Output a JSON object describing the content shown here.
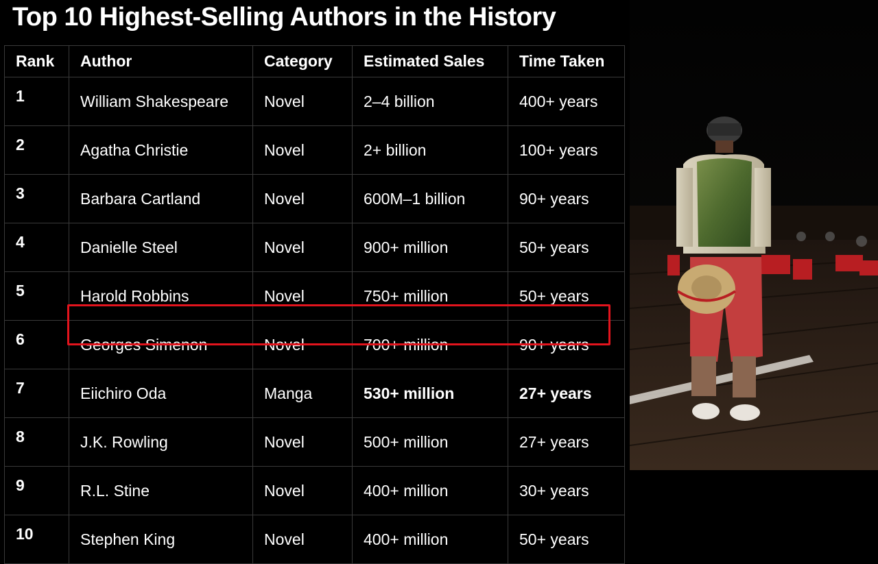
{
  "title": "Top 10 Highest-Selling Authors in the History",
  "table": {
    "headers": [
      "Rank",
      "Author",
      "Category",
      "Estimated Sales",
      "Time Taken"
    ],
    "rows": [
      {
        "rank": "1",
        "author": "William Shakespeare",
        "category": "Novel",
        "sales": "2–4 billion",
        "time": "400+ years"
      },
      {
        "rank": "2",
        "author": "Agatha Christie",
        "category": "Novel",
        "sales": "2+ billion",
        "time": "100+ years"
      },
      {
        "rank": "3",
        "author": "Barbara Cartland",
        "category": "Novel",
        "sales": "600M–1 billion",
        "time": "90+ years"
      },
      {
        "rank": "4",
        "author": "Danielle Steel",
        "category": "Novel",
        "sales": "900+ million",
        "time": "50+ years"
      },
      {
        "rank": "5",
        "author": "Harold Robbins",
        "category": "Novel",
        "sales": "750+ million",
        "time": "50+ years"
      },
      {
        "rank": "6",
        "author": "Georges Simenon",
        "category": "Novel",
        "sales": "700+ million",
        "time": "90+ years"
      },
      {
        "rank": "7",
        "author": "Eiichiro Oda",
        "category": "Manga",
        "sales": "530+ million",
        "time": "27+ years",
        "highlighted": true
      },
      {
        "rank": "8",
        "author": "J.K. Rowling",
        "category": "Novel",
        "sales": "500+ million",
        "time": "27+ years"
      },
      {
        "rank": "9",
        "author": "R.L. Stine",
        "category": "Novel",
        "sales": "400+ million",
        "time": "30+ years"
      },
      {
        "rank": "10",
        "author": "Stephen King",
        "category": "Novel",
        "sales": "400+ million",
        "time": "50+ years"
      }
    ]
  },
  "colors": {
    "background": "#000000",
    "grid_line": "#3a3a3a",
    "highlight": "#e3141d",
    "text": "#ffffff"
  },
  "photo": {
    "subject": "person in green and cream satin jacket, red cargo shorts, holding straw hat behind back, standing on wooden boardwalk at night"
  }
}
